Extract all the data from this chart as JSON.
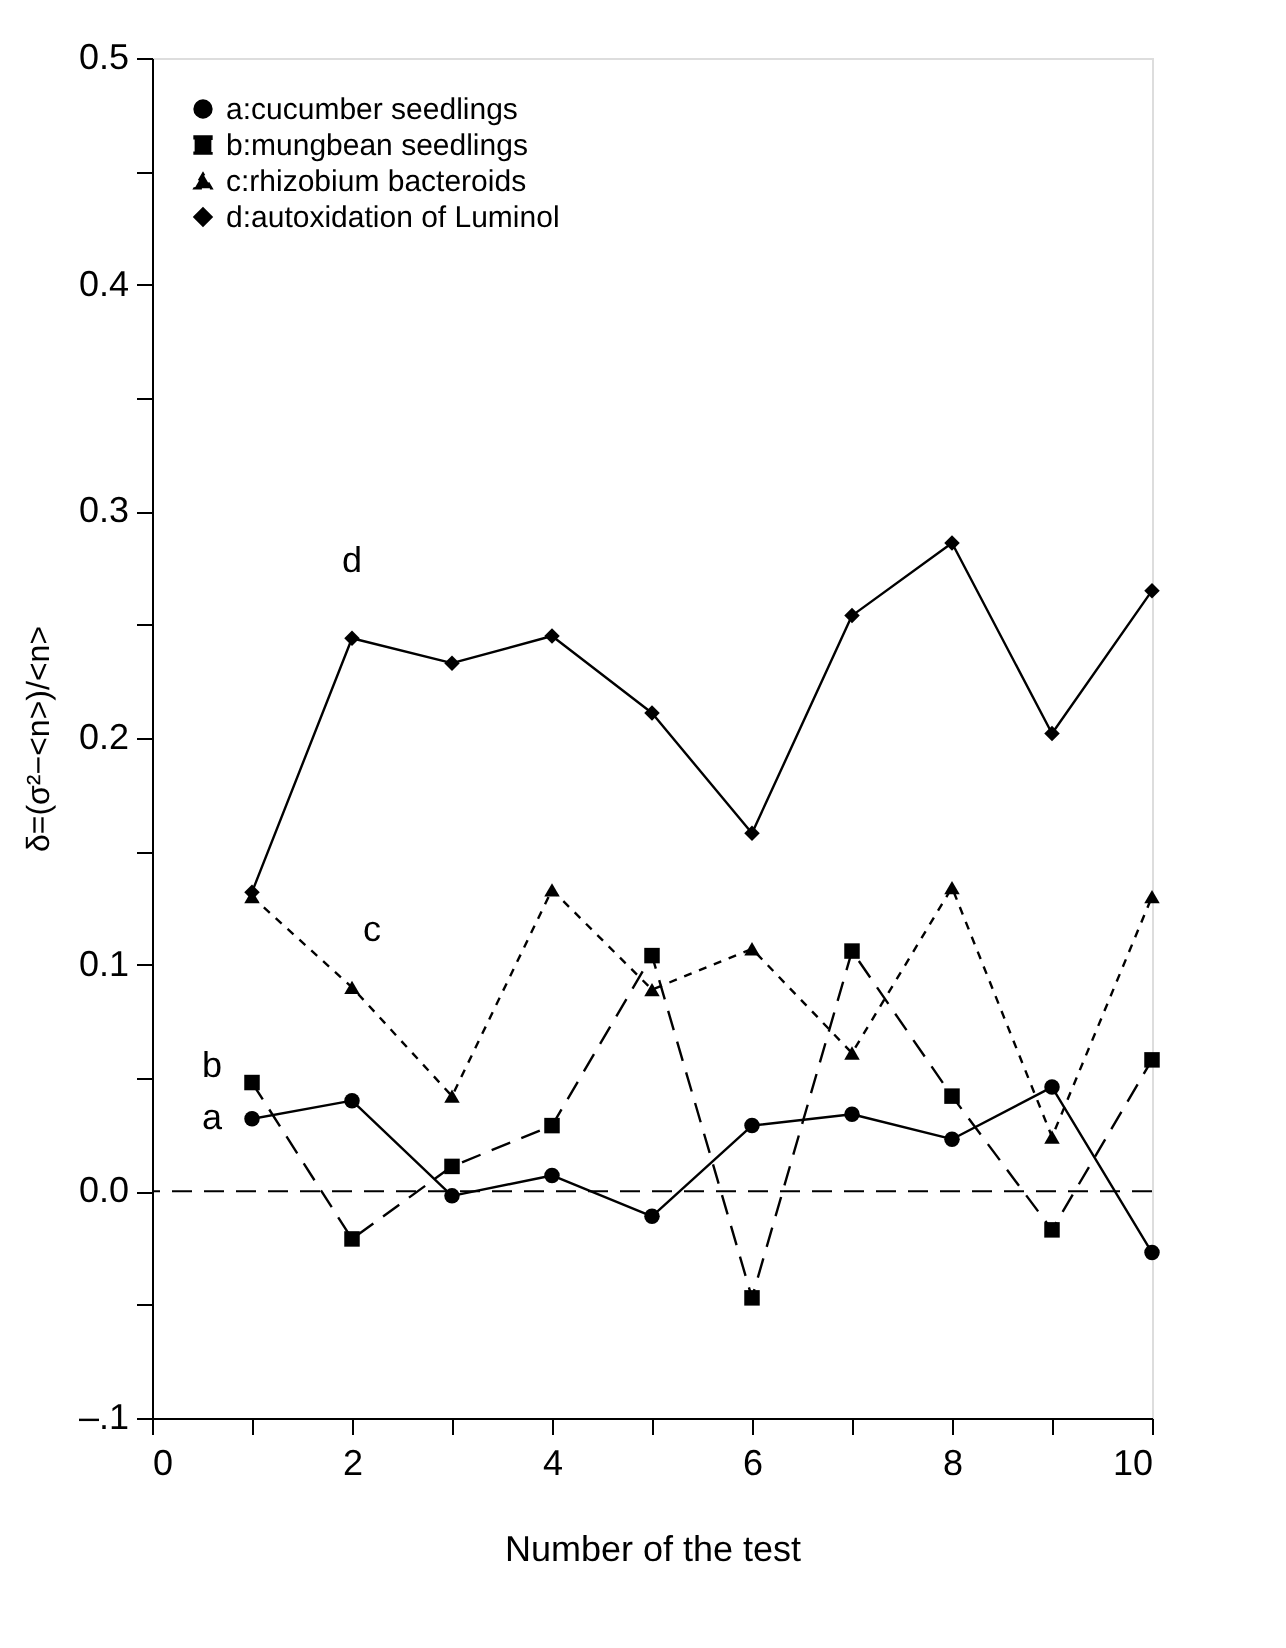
{
  "chart_data": {
    "type": "line",
    "xlabel": "Number of the test",
    "ylabel": "δ=(σ²−<n>)/<n>",
    "x": [
      1,
      2,
      3,
      4,
      5,
      6,
      7,
      8,
      9,
      10
    ],
    "series": [
      {
        "name": "a:cucumber seedlings",
        "color": "#000000",
        "marker": "circle",
        "line_style": "solid",
        "values": [
          0.032,
          0.04,
          -0.002,
          0.007,
          -0.011,
          0.029,
          0.034,
          0.023,
          0.046,
          -0.027
        ]
      },
      {
        "name": "b:mungbean seedlings",
        "color": "#000000",
        "marker": "square",
        "line_style": "dashed",
        "values": [
          0.048,
          -0.021,
          0.011,
          0.029,
          0.104,
          -0.047,
          0.106,
          0.042,
          -0.017,
          0.058
        ]
      },
      {
        "name": "c:rhizobium bacteroids",
        "color": "#000000",
        "marker": "triangle",
        "line_style": "dotted",
        "values": [
          0.13,
          0.09,
          0.042,
          0.133,
          0.089,
          0.107,
          0.061,
          0.134,
          0.024,
          0.13
        ]
      },
      {
        "name": "d:autoxidation of Luminol",
        "color": "#000000",
        "marker": "diamond",
        "line_style": "solid",
        "values": [
          0.132,
          0.244,
          0.233,
          0.245,
          0.211,
          0.158,
          0.254,
          0.286,
          0.202,
          0.265
        ]
      }
    ],
    "xlim": [
      0,
      10
    ],
    "xticks": [
      0,
      {
        "value": 1,
        "label": null
      },
      2,
      {
        "value": 3,
        "label": null
      },
      4,
      {
        "value": 5,
        "label": null
      },
      6,
      {
        "value": 7,
        "label": null
      },
      8,
      {
        "value": 9,
        "label": null
      },
      10
    ],
    "ylim": [
      -0.1,
      0.5
    ],
    "yticks": [
      {
        "value": -0.1,
        "label": "–.1"
      },
      {
        "value": -0.05,
        "label": null
      },
      {
        "value": 0.0,
        "label": "0.0"
      },
      {
        "value": 0.05,
        "label": null
      },
      {
        "value": 0.1,
        "label": "0.1"
      },
      {
        "value": 0.15,
        "label": null
      },
      {
        "value": 0.2,
        "label": "0.2"
      },
      {
        "value": 0.25,
        "label": null
      },
      {
        "value": 0.3,
        "label": "0.3"
      },
      {
        "value": 0.35,
        "label": null
      },
      {
        "value": 0.4,
        "label": "0.4"
      },
      {
        "value": 0.45,
        "label": null
      },
      {
        "value": 0.5,
        "label": "0.5"
      }
    ],
    "ref_lines": [
      {
        "axis": "y",
        "value": 0.0,
        "color": "#000000",
        "line_style": "dashed"
      }
    ],
    "annotations": [
      "d",
      "c",
      "b",
      "a"
    ],
    "grid": false,
    "legend": "top left"
  }
}
